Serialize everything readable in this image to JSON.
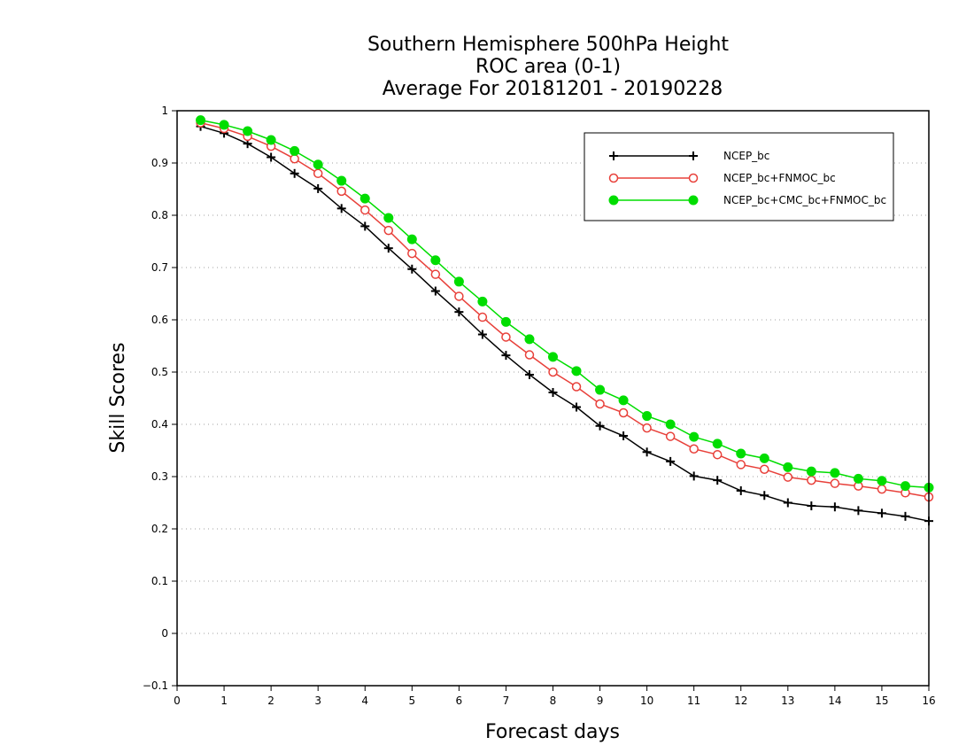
{
  "chart_data": {
    "type": "line",
    "title_lines": [
      "Southern Hemisphere 500hPa Height",
      "ROC area (0-1)",
      "Average For 20181201 - 20190228"
    ],
    "xlabel": "Forecast days",
    "ylabel": "Skill Scores",
    "xlim": [
      0,
      16
    ],
    "ylim": [
      -0.1,
      1
    ],
    "xticks": [
      "0",
      "1",
      "2",
      "3",
      "4",
      "5",
      "6",
      "7",
      "8",
      "9",
      "10",
      "11",
      "12",
      "13",
      "14",
      "15",
      "16"
    ],
    "yticks": [
      "−0.1",
      "0",
      "0.1",
      "0.2",
      "0.3",
      "0.4",
      "0.5",
      "0.6",
      "0.7",
      "0.8",
      "0.9",
      "1"
    ],
    "grid": "horizontal-dotted",
    "legend_position": "top-right",
    "x": [
      0.5,
      1,
      1.5,
      2,
      2.5,
      3,
      3.5,
      4,
      4.5,
      5,
      5.5,
      6,
      6.5,
      7,
      7.5,
      8,
      8.5,
      9,
      9.5,
      10,
      10.5,
      11,
      11.5,
      12,
      12.5,
      13,
      13.5,
      14,
      14.5,
      15,
      15.5,
      16
    ],
    "series": [
      {
        "name": "NCEP_bc",
        "color": "#000000",
        "marker": "plus",
        "values": [
          0.97,
          0.957,
          0.937,
          0.911,
          0.88,
          0.851,
          0.813,
          0.779,
          0.737,
          0.697,
          0.655,
          0.615,
          0.572,
          0.532,
          0.495,
          0.461,
          0.433,
          0.397,
          0.378,
          0.347,
          0.329,
          0.301,
          0.293,
          0.273,
          0.264,
          0.25,
          0.244,
          0.242,
          0.235,
          0.23,
          0.224,
          0.215
        ]
      },
      {
        "name": "NCEP_bc+FNMOC_bc",
        "color": "#e8403a",
        "marker": "open-circle",
        "values": [
          0.977,
          0.966,
          0.951,
          0.932,
          0.908,
          0.88,
          0.846,
          0.81,
          0.771,
          0.727,
          0.687,
          0.645,
          0.605,
          0.567,
          0.533,
          0.5,
          0.472,
          0.439,
          0.422,
          0.393,
          0.377,
          0.353,
          0.342,
          0.323,
          0.314,
          0.299,
          0.293,
          0.287,
          0.282,
          0.276,
          0.269,
          0.261
        ]
      },
      {
        "name": "NCEP_bc+CMC_bc+FNMOC_bc",
        "color": "#00dd00",
        "marker": "filled-circle",
        "values": [
          0.982,
          0.973,
          0.961,
          0.944,
          0.923,
          0.897,
          0.866,
          0.832,
          0.795,
          0.754,
          0.714,
          0.673,
          0.635,
          0.596,
          0.563,
          0.529,
          0.502,
          0.466,
          0.446,
          0.416,
          0.4,
          0.376,
          0.363,
          0.344,
          0.335,
          0.318,
          0.31,
          0.307,
          0.296,
          0.292,
          0.282,
          0.279
        ]
      }
    ]
  }
}
